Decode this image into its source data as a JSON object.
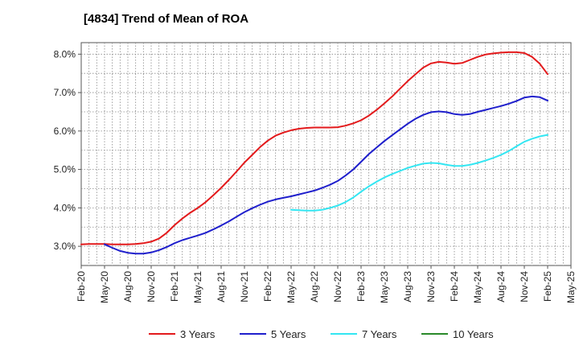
{
  "chart_data": {
    "type": "line",
    "title": "[4834]  Trend of Mean of ROA",
    "xlabel": "",
    "ylabel": "",
    "ylim": [
      2.5,
      8.3
    ],
    "grid": true,
    "legend_position": "bottom",
    "y_ticks": [
      "3.0%",
      "4.0%",
      "5.0%",
      "6.0%",
      "7.0%",
      "8.0%"
    ],
    "x_ticks": [
      "Feb-20",
      "May-20",
      "Aug-20",
      "Nov-20",
      "Feb-21",
      "May-21",
      "Aug-21",
      "Nov-21",
      "Feb-22",
      "May-22",
      "Aug-22",
      "Nov-22",
      "Feb-23",
      "May-23",
      "Aug-23",
      "Nov-23",
      "Feb-24",
      "May-24",
      "Aug-24",
      "Nov-24",
      "Feb-25",
      "May-25"
    ],
    "series": [
      {
        "name": "3 Years",
        "color": "#e31a1c",
        "points": [
          [
            "Feb-20",
            3.05
          ],
          [
            "Mar-20",
            3.06
          ],
          [
            "Apr-20",
            3.06
          ],
          [
            "May-20",
            3.06
          ],
          [
            "Jun-20",
            3.05
          ],
          [
            "Jul-20",
            3.05
          ],
          [
            "Aug-20",
            3.05
          ],
          [
            "Sep-20",
            3.06
          ],
          [
            "Oct-20",
            3.08
          ],
          [
            "Nov-20",
            3.12
          ],
          [
            "Dec-20",
            3.2
          ],
          [
            "Jan-21",
            3.35
          ],
          [
            "Feb-21",
            3.55
          ],
          [
            "Mar-21",
            3.72
          ],
          [
            "Apr-21",
            3.87
          ],
          [
            "May-21",
            4.0
          ],
          [
            "Jun-21",
            4.15
          ],
          [
            "Jul-21",
            4.33
          ],
          [
            "Aug-21",
            4.52
          ],
          [
            "Sep-21",
            4.73
          ],
          [
            "Oct-21",
            4.95
          ],
          [
            "Nov-21",
            5.18
          ],
          [
            "Dec-21",
            5.38
          ],
          [
            "Jan-22",
            5.58
          ],
          [
            "Feb-22",
            5.75
          ],
          [
            "Mar-22",
            5.88
          ],
          [
            "Apr-22",
            5.96
          ],
          [
            "May-22",
            6.02
          ],
          [
            "Jun-22",
            6.06
          ],
          [
            "Jul-22",
            6.08
          ],
          [
            "Aug-22",
            6.09
          ],
          [
            "Sep-22",
            6.09
          ],
          [
            "Oct-22",
            6.09
          ],
          [
            "Nov-22",
            6.1
          ],
          [
            "Dec-22",
            6.14
          ],
          [
            "Jan-23",
            6.2
          ],
          [
            "Feb-23",
            6.28
          ],
          [
            "Mar-23",
            6.4
          ],
          [
            "Apr-23",
            6.55
          ],
          [
            "May-23",
            6.72
          ],
          [
            "Jun-23",
            6.9
          ],
          [
            "Jul-23",
            7.1
          ],
          [
            "Aug-23",
            7.3
          ],
          [
            "Sep-23",
            7.48
          ],
          [
            "Oct-23",
            7.65
          ],
          [
            "Nov-23",
            7.76
          ],
          [
            "Dec-23",
            7.8
          ],
          [
            "Jan-24",
            7.78
          ],
          [
            "Feb-24",
            7.75
          ],
          [
            "Mar-24",
            7.77
          ],
          [
            "Apr-24",
            7.85
          ],
          [
            "May-24",
            7.93
          ],
          [
            "Jun-24",
            7.99
          ],
          [
            "Jul-24",
            8.02
          ],
          [
            "Aug-24",
            8.04
          ],
          [
            "Sep-24",
            8.05
          ],
          [
            "Oct-24",
            8.05
          ],
          [
            "Nov-24",
            8.03
          ],
          [
            "Dec-24",
            7.93
          ],
          [
            "Jan-25",
            7.75
          ],
          [
            "Feb-25",
            7.48
          ]
        ]
      },
      {
        "name": "5 Years",
        "color": "#1f1fcc",
        "points": [
          [
            "May-20",
            3.05
          ],
          [
            "Jun-20",
            2.96
          ],
          [
            "Jul-20",
            2.88
          ],
          [
            "Aug-20",
            2.83
          ],
          [
            "Sep-20",
            2.81
          ],
          [
            "Oct-20",
            2.81
          ],
          [
            "Nov-20",
            2.84
          ],
          [
            "Dec-20",
            2.9
          ],
          [
            "Jan-21",
            2.98
          ],
          [
            "Feb-21",
            3.08
          ],
          [
            "Mar-21",
            3.16
          ],
          [
            "Apr-21",
            3.22
          ],
          [
            "May-21",
            3.28
          ],
          [
            "Jun-21",
            3.35
          ],
          [
            "Jul-21",
            3.44
          ],
          [
            "Aug-21",
            3.54
          ],
          [
            "Sep-21",
            3.65
          ],
          [
            "Oct-21",
            3.77
          ],
          [
            "Nov-21",
            3.89
          ],
          [
            "Dec-21",
            3.99
          ],
          [
            "Jan-22",
            4.08
          ],
          [
            "Feb-22",
            4.16
          ],
          [
            "Mar-22",
            4.22
          ],
          [
            "Apr-22",
            4.26
          ],
          [
            "May-22",
            4.3
          ],
          [
            "Jun-22",
            4.35
          ],
          [
            "Jul-22",
            4.4
          ],
          [
            "Aug-22",
            4.45
          ],
          [
            "Sep-22",
            4.52
          ],
          [
            "Oct-22",
            4.6
          ],
          [
            "Nov-22",
            4.7
          ],
          [
            "Dec-22",
            4.84
          ],
          [
            "Jan-23",
            5.0
          ],
          [
            "Feb-23",
            5.2
          ],
          [
            "Mar-23",
            5.4
          ],
          [
            "Apr-23",
            5.57
          ],
          [
            "May-23",
            5.74
          ],
          [
            "Jun-23",
            5.89
          ],
          [
            "Jul-23",
            6.04
          ],
          [
            "Aug-23",
            6.19
          ],
          [
            "Sep-23",
            6.32
          ],
          [
            "Oct-23",
            6.42
          ],
          [
            "Nov-23",
            6.49
          ],
          [
            "Dec-23",
            6.51
          ],
          [
            "Jan-24",
            6.49
          ],
          [
            "Feb-24",
            6.44
          ],
          [
            "Mar-24",
            6.42
          ],
          [
            "Apr-24",
            6.44
          ],
          [
            "May-24",
            6.5
          ],
          [
            "Jun-24",
            6.55
          ],
          [
            "Jul-24",
            6.6
          ],
          [
            "Aug-24",
            6.65
          ],
          [
            "Sep-24",
            6.71
          ],
          [
            "Oct-24",
            6.78
          ],
          [
            "Nov-24",
            6.87
          ],
          [
            "Dec-24",
            6.9
          ],
          [
            "Jan-25",
            6.88
          ],
          [
            "Feb-25",
            6.79
          ]
        ]
      },
      {
        "name": "7 Years",
        "color": "#33e6f2",
        "points": [
          [
            "May-22",
            3.95
          ],
          [
            "Jun-22",
            3.94
          ],
          [
            "Jul-22",
            3.93
          ],
          [
            "Aug-22",
            3.93
          ],
          [
            "Sep-22",
            3.95
          ],
          [
            "Oct-22",
            4.0
          ],
          [
            "Nov-22",
            4.06
          ],
          [
            "Dec-22",
            4.15
          ],
          [
            "Jan-23",
            4.27
          ],
          [
            "Feb-23",
            4.42
          ],
          [
            "Mar-23",
            4.56
          ],
          [
            "Apr-23",
            4.68
          ],
          [
            "May-23",
            4.79
          ],
          [
            "Jun-23",
            4.88
          ],
          [
            "Jul-23",
            4.96
          ],
          [
            "Aug-23",
            5.04
          ],
          [
            "Sep-23",
            5.1
          ],
          [
            "Oct-23",
            5.15
          ],
          [
            "Nov-23",
            5.17
          ],
          [
            "Dec-23",
            5.16
          ],
          [
            "Jan-24",
            5.12
          ],
          [
            "Feb-24",
            5.09
          ],
          [
            "Mar-24",
            5.09
          ],
          [
            "Apr-24",
            5.12
          ],
          [
            "May-24",
            5.17
          ],
          [
            "Jun-24",
            5.23
          ],
          [
            "Jul-24",
            5.3
          ],
          [
            "Aug-24",
            5.38
          ],
          [
            "Sep-24",
            5.48
          ],
          [
            "Oct-24",
            5.6
          ],
          [
            "Nov-24",
            5.72
          ],
          [
            "Dec-24",
            5.8
          ],
          [
            "Jan-25",
            5.86
          ],
          [
            "Feb-25",
            5.9
          ]
        ]
      },
      {
        "name": "10 Years",
        "color": "#2a8a2a",
        "points": []
      }
    ]
  }
}
